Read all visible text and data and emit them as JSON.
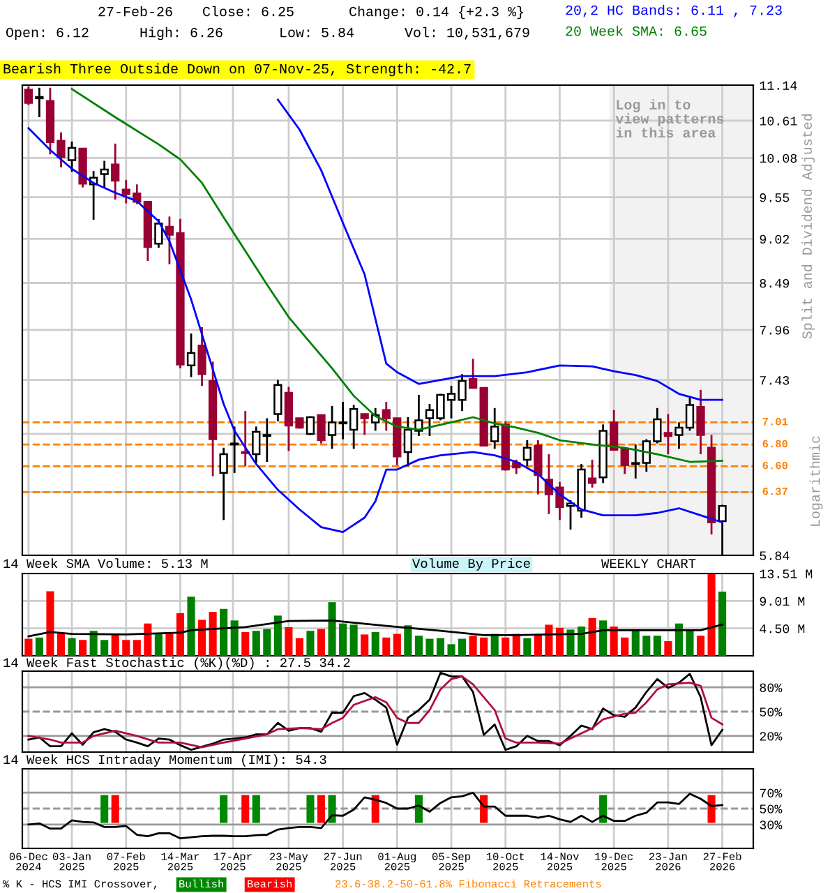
{
  "chart_data": [
    {
      "type": "candlestick",
      "title": "Bearish Three Outside Down on 07-Nov-25, Strength: -42.7",
      "annotations": [
        "27-Feb-26",
        "Close: 6.25",
        "Change: 0.14 {+2.3 %}",
        "Open: 6.12",
        "High: 6.26",
        "Low: 5.84",
        "Vol: 10,531,679",
        "Logarithmic"
      ],
      "ylabel": "Split and Dividend Adjusted",
      "x": [
        "2024-12-06",
        "2024-12-13",
        "2024-12-20",
        "2024-12-27",
        "2025-01-03",
        "2025-01-10",
        "2025-01-17",
        "2025-01-24",
        "2025-01-31",
        "2025-02-07",
        "2025-02-14",
        "2025-02-21",
        "2025-02-28",
        "2025-03-07",
        "2025-03-14",
        "2025-03-21",
        "2025-03-28",
        "2025-04-04",
        "2025-04-11",
        "2025-04-18",
        "2025-04-25",
        "2025-05-02",
        "2025-05-09",
        "2025-05-16",
        "2025-05-23",
        "2025-05-30",
        "2025-06-06",
        "2025-06-13",
        "2025-06-20",
        "2025-06-27",
        "2025-07-04",
        "2025-07-11",
        "2025-07-18",
        "2025-07-25",
        "2025-08-01",
        "2025-08-08",
        "2025-08-15",
        "2025-08-22",
        "2025-08-29",
        "2025-09-05",
        "2025-09-12",
        "2025-09-19",
        "2025-09-26",
        "2025-10-03",
        "2025-10-10",
        "2025-10-17",
        "2025-10-24",
        "2025-10-31",
        "2025-11-07",
        "2025-11-14",
        "2025-11-21",
        "2025-11-28",
        "2025-12-05",
        "2025-12-12",
        "2025-12-19",
        "2025-12-26",
        "2026-01-02",
        "2026-01-09",
        "2026-01-16",
        "2026-01-23",
        "2026-01-30",
        "2026-02-06",
        "2026-02-13",
        "2026-02-20",
        "2026-02-27"
      ],
      "series": [
        {
          "ohlc": [
            [
              11.07,
              11.12,
              10.84,
              10.87
            ],
            [
              10.94,
              11.1,
              10.66,
              10.96
            ],
            [
              10.9,
              11.1,
              10.13,
              10.3
            ],
            [
              10.32,
              10.44,
              9.95,
              10.09
            ],
            [
              10.05,
              10.31,
              9.89,
              10.22
            ],
            [
              10.21,
              10.21,
              9.68,
              9.73
            ],
            [
              9.72,
              9.9,
              9.26,
              9.81
            ],
            [
              9.86,
              10.04,
              9.68,
              9.92
            ],
            [
              9.99,
              10.28,
              9.52,
              9.77
            ],
            [
              9.65,
              9.78,
              9.47,
              9.59
            ],
            [
              9.6,
              9.72,
              9.46,
              9.49
            ],
            [
              9.49,
              9.49,
              8.75,
              8.92
            ],
            [
              8.96,
              9.27,
              8.91,
              9.21
            ],
            [
              9.17,
              9.3,
              8.71,
              9.07
            ],
            [
              9.09,
              9.27,
              7.55,
              7.59
            ],
            [
              7.58,
              7.92,
              7.46,
              7.71
            ],
            [
              7.79,
              7.99,
              7.37,
              7.49
            ],
            [
              7.42,
              7.62,
              6.51,
              6.85
            ],
            [
              6.54,
              6.77,
              6.13,
              6.71
            ],
            [
              6.8,
              6.97,
              6.54,
              6.81
            ],
            [
              6.73,
              7.12,
              6.6,
              6.72
            ],
            [
              6.71,
              6.97,
              6.63,
              6.92
            ],
            [
              6.88,
              7.05,
              6.64,
              6.89
            ],
            [
              7.09,
              7.43,
              7.02,
              7.38
            ],
            [
              7.3,
              7.36,
              6.74,
              6.98
            ],
            [
              7.05,
              7.05,
              6.95,
              6.96
            ],
            [
              6.9,
              7.07,
              6.89,
              7.06
            ],
            [
              7.08,
              7.08,
              6.81,
              6.84
            ],
            [
              6.89,
              7.17,
              6.76,
              7.01
            ],
            [
              7.0,
              7.21,
              6.85,
              7.01
            ],
            [
              6.94,
              7.18,
              6.76,
              7.14
            ],
            [
              7.09,
              7.09,
              6.89,
              7.05
            ],
            [
              7.01,
              7.15,
              6.93,
              7.08
            ],
            [
              7.13,
              7.21,
              6.93,
              7.05
            ],
            [
              7.05,
              7.05,
              6.61,
              6.69
            ],
            [
              6.73,
              7.06,
              6.6,
              6.94
            ],
            [
              6.93,
              7.28,
              6.88,
              7.03
            ],
            [
              7.05,
              7.19,
              6.88,
              7.13
            ],
            [
              7.05,
              7.29,
              7.03,
              7.28
            ],
            [
              7.23,
              7.37,
              7.05,
              7.29
            ],
            [
              7.23,
              7.49,
              7.12,
              7.42
            ],
            [
              7.44,
              7.65,
              7.35,
              7.35
            ],
            [
              7.35,
              7.35,
              6.79,
              6.79
            ],
            [
              6.83,
              7.15,
              6.76,
              6.97
            ],
            [
              6.99,
              7.02,
              6.56,
              6.57
            ],
            [
              6.63,
              6.66,
              6.53,
              6.59
            ],
            [
              6.66,
              6.84,
              6.6,
              6.77
            ],
            [
              6.79,
              6.84,
              6.35,
              6.52
            ],
            [
              6.48,
              6.71,
              6.18,
              6.35
            ],
            [
              6.41,
              6.46,
              6.13,
              6.24
            ],
            [
              6.25,
              6.3,
              6.05,
              6.27
            ],
            [
              6.21,
              6.62,
              6.15,
              6.57
            ],
            [
              6.49,
              6.66,
              6.41,
              6.45
            ],
            [
              6.5,
              6.99,
              6.45,
              6.93
            ],
            [
              7.01,
              7.13,
              6.75,
              6.75
            ],
            [
              6.76,
              6.76,
              6.53,
              6.61
            ],
            [
              6.62,
              6.8,
              6.49,
              6.63
            ],
            [
              6.63,
              6.85,
              6.55,
              6.83
            ],
            [
              6.83,
              7.15,
              6.81,
              7.04
            ],
            [
              6.91,
              7.09,
              6.71,
              6.88
            ],
            [
              6.89,
              7.01,
              6.76,
              6.96
            ],
            [
              6.96,
              7.25,
              6.93,
              7.18
            ],
            [
              7.16,
              7.33,
              6.71,
              6.89
            ],
            [
              6.77,
              6.89,
              6.01,
              6.11
            ],
            [
              6.12,
              6.26,
              5.84,
              6.25
            ]
          ],
          "colors": [
            "#990033",
            "#ffffff",
            "#990033",
            "#990033",
            "#ffffff",
            "#990033",
            "#ffffff",
            "#ffffff",
            "#990033",
            "#990033",
            "#990033",
            "#990033",
            "#ffffff",
            "#990033",
            "#990033",
            "#ffffff",
            "#990033",
            "#990033",
            "#ffffff",
            "#ffffff",
            "#990033",
            "#ffffff",
            "#ffffff",
            "#ffffff",
            "#990033",
            "#990033",
            "#ffffff",
            "#990033",
            "#ffffff",
            "#ffffff",
            "#ffffff",
            "#990033",
            "#ffffff",
            "#990033",
            "#990033",
            "#ffffff",
            "#ffffff",
            "#ffffff",
            "#ffffff",
            "#ffffff",
            "#ffffff",
            "#990033",
            "#990033",
            "#ffffff",
            "#990033",
            "#990033",
            "#ffffff",
            "#990033",
            "#990033",
            "#990033",
            "#ffffff",
            "#ffffff",
            "#990033",
            "#ffffff",
            "#990033",
            "#990033",
            "#ffffff",
            "#ffffff",
            "#ffffff",
            "#990033",
            "#ffffff",
            "#ffffff",
            "#990033",
            "#990033",
            "#ffffff"
          ]
        },
        {
          "type": "line",
          "name": "20,2 HC Bands: 6.11 , 7.23",
          "color": "#0000ff",
          "x": [
            "2025-05-16",
            "2025-05-30",
            "2025-06-13",
            "2025-06-27",
            "2025-07-11",
            "2025-07-25",
            "2025-08-01",
            "2025-08-15",
            "2025-08-29",
            "2025-09-12",
            "2025-10-03",
            "2025-10-24",
            "2025-11-14",
            "2025-12-05",
            "2025-12-19",
            "2026-01-02",
            "2026-01-16",
            "2026-01-30",
            "2026-02-13",
            "2026-02-27"
          ],
          "values": [
            10.92,
            10.48,
            9.91,
            9.22,
            8.59,
            7.6,
            7.51,
            7.39,
            7.43,
            7.47,
            7.47,
            7.51,
            7.58,
            7.57,
            7.52,
            7.48,
            7.42,
            7.29,
            7.23,
            7.23
          ]
        },
        {
          "type": "line",
          "color": "#0000ff",
          "x": [
            "2024-12-06",
            "2024-12-20",
            "2025-01-03",
            "2025-01-17",
            "2025-01-31",
            "2025-02-14",
            "2025-02-28",
            "2025-03-07",
            "2025-03-21",
            "2025-04-04",
            "2025-04-11",
            "2025-04-18",
            "2025-05-02",
            "2025-05-16",
            "2025-05-30",
            "2025-06-13",
            "2025-06-27",
            "2025-07-11",
            "2025-07-18",
            "2025-07-25",
            "2025-08-01",
            "2025-08-15",
            "2025-08-29",
            "2025-09-19",
            "2025-10-03",
            "2025-10-17",
            "2025-10-31",
            "2025-11-14",
            "2025-11-28",
            "2025-12-12",
            "2026-01-02",
            "2026-01-16",
            "2026-01-30",
            "2026-02-13",
            "2026-02-27"
          ],
          "values": [
            10.5,
            10.19,
            9.93,
            9.74,
            9.61,
            9.5,
            9.24,
            8.99,
            8.3,
            7.54,
            7.19,
            6.93,
            6.62,
            6.39,
            6.22,
            6.07,
            6.03,
            6.15,
            6.29,
            6.57,
            6.57,
            6.66,
            6.7,
            6.73,
            6.7,
            6.64,
            6.53,
            6.35,
            6.22,
            6.17,
            6.17,
            6.19,
            6.23,
            6.17,
            6.11
          ]
        },
        {
          "type": "line",
          "name": "20 Week SMA: 6.65",
          "color": "#008000",
          "x": [
            "2025-01-03",
            "2025-01-31",
            "2025-02-28",
            "2025-03-14",
            "2025-03-28",
            "2025-04-11",
            "2025-04-25",
            "2025-05-09",
            "2025-05-23",
            "2025-06-06",
            "2025-06-20",
            "2025-07-04",
            "2025-07-18",
            "2025-08-01",
            "2025-08-15",
            "2025-09-05",
            "2025-09-19",
            "2025-10-03",
            "2025-10-17",
            "2025-10-31",
            "2025-11-14",
            "2025-12-05",
            "2025-12-26",
            "2026-01-16",
            "2026-02-06",
            "2026-02-27"
          ],
          "values": [
            11.08,
            10.66,
            10.27,
            10.06,
            9.74,
            9.29,
            8.87,
            8.47,
            8.1,
            7.82,
            7.55,
            7.27,
            7.07,
            6.97,
            6.94,
            7.01,
            7.06,
            7.0,
            6.96,
            6.91,
            6.84,
            6.8,
            6.77,
            6.71,
            6.64,
            6.65
          ]
        }
      ],
      "log": true,
      "ylim": [
        5.84,
        11.14
      ],
      "yticks": [
        5.84,
        {
          "value": 6.37,
          "label": null
        },
        {
          "value": 6.9,
          "label": null
        },
        7.43,
        7.96,
        8.49,
        9.02,
        9.55,
        10.08,
        10.61,
        11.14
      ],
      "xlim": [
        "2024-12-02",
        "2026-03-19"
      ],
      "xticks": [
        {
          "value": "2024-12-06",
          "label": null
        },
        {
          "value": "2025-01-03",
          "label": null
        },
        {
          "value": "2025-02-07",
          "label": null
        },
        {
          "value": "2025-03-14",
          "label": null
        },
        {
          "value": "2025-04-17",
          "label": null
        },
        {
          "value": "2025-05-23",
          "label": null
        },
        {
          "value": "2025-06-27",
          "label": null
        },
        {
          "value": "2025-08-01",
          "label": null
        },
        {
          "value": "2025-09-05",
          "label": null
        },
        {
          "value": "2025-10-10",
          "label": null
        },
        {
          "value": "2025-11-14",
          "label": null
        },
        {
          "value": "2025-12-19",
          "label": null
        },
        {
          "value": "2026-01-23",
          "label": null
        },
        {
          "value": "2026-02-27",
          "label": null
        }
      ],
      "tick_labels": "y",
      "grid": true,
      "legend": "top right",
      "ref_lines": [
        {
          "axis": "y",
          "value": 7.01,
          "label": "7.01",
          "color": "#ff8000",
          "line_style": "dashed"
        },
        {
          "axis": "y",
          "value": 6.8,
          "label": "6.80",
          "color": "#ff8000",
          "line_style": "dashed"
        },
        {
          "axis": "y",
          "value": 6.6,
          "label": "6.60",
          "color": "#ff8000",
          "line_style": "dashed"
        },
        {
          "axis": "y",
          "value": 6.37,
          "label": "6.37",
          "color": "#ff8000",
          "line_style": "dashed"
        }
      ],
      "bands": [
        {
          "axis": "x",
          "from": "2025-12-16",
          "to": "2026-03-19",
          "label": "Log in to view patterns in this area",
          "color": "#f2f2f2"
        }
      ]
    },
    {
      "type": "bar",
      "title": "14 Week SMA Volume: 5.13 M",
      "annotations": [
        "Volume By Price",
        "WEEKLY CHART"
      ],
      "x": [
        "2024-12-06",
        "2024-12-13",
        "2024-12-20",
        "2024-12-27",
        "2025-01-03",
        "2025-01-10",
        "2025-01-17",
        "2025-01-24",
        "2025-01-31",
        "2025-02-07",
        "2025-02-14",
        "2025-02-21",
        "2025-02-28",
        "2025-03-07",
        "2025-03-14",
        "2025-03-21",
        "2025-03-28",
        "2025-04-04",
        "2025-04-11",
        "2025-04-18",
        "2025-04-25",
        "2025-05-02",
        "2025-05-09",
        "2025-05-16",
        "2025-05-23",
        "2025-05-30",
        "2025-06-06",
        "2025-06-13",
        "2025-06-20",
        "2025-06-27",
        "2025-07-04",
        "2025-07-11",
        "2025-07-18",
        "2025-07-25",
        "2025-08-01",
        "2025-08-08",
        "2025-08-15",
        "2025-08-22",
        "2025-08-29",
        "2025-09-05",
        "2025-09-12",
        "2025-09-19",
        "2025-09-26",
        "2025-10-03",
        "2025-10-10",
        "2025-10-17",
        "2025-10-24",
        "2025-10-31",
        "2025-11-07",
        "2025-11-14",
        "2025-11-21",
        "2025-11-28",
        "2025-12-05",
        "2025-12-12",
        "2025-12-19",
        "2025-12-26",
        "2026-01-02",
        "2026-01-09",
        "2026-01-16",
        "2026-01-23",
        "2026-01-30",
        "2026-02-06",
        "2026-02-13",
        "2026-02-20",
        "2026-02-27"
      ],
      "series": [
        {
          "values": [
            2.8,
            3.0,
            10.6,
            3.8,
            2.9,
            2.6,
            4.1,
            2.6,
            3.5,
            2.6,
            2.6,
            5.3,
            3.6,
            3.8,
            7.0,
            9.7,
            5.9,
            7.2,
            7.7,
            5.8,
            3.9,
            4.1,
            4.4,
            6.6,
            4.7,
            2.9,
            4.1,
            4.4,
            8.8,
            5.3,
            5.1,
            3.5,
            3.9,
            3.0,
            3.6,
            5.0,
            3.3,
            2.8,
            2.9,
            1.9,
            2.8,
            3.3,
            3.0,
            3.6,
            3.0,
            3.6,
            2.9,
            3.5,
            5.1,
            4.6,
            4.3,
            4.8,
            6.2,
            5.8,
            4.8,
            3.0,
            4.2,
            3.3,
            3.3,
            2.4,
            5.3,
            4.3,
            3.3,
            13.4,
            10.53
          ],
          "colors": [
            "#ff0000",
            "#008000",
            "#ff0000",
            "#ff0000",
            "#008000",
            "#ff0000",
            "#008000",
            "#008000",
            "#ff0000",
            "#ff0000",
            "#ff0000",
            "#ff0000",
            "#008000",
            "#ff0000",
            "#ff0000",
            "#008000",
            "#ff0000",
            "#ff0000",
            "#008000",
            "#008000",
            "#ff0000",
            "#008000",
            "#008000",
            "#008000",
            "#ff0000",
            "#ff0000",
            "#008000",
            "#ff0000",
            "#008000",
            "#008000",
            "#008000",
            "#ff0000",
            "#008000",
            "#ff0000",
            "#ff0000",
            "#008000",
            "#008000",
            "#008000",
            "#008000",
            "#008000",
            "#008000",
            "#ff0000",
            "#ff0000",
            "#008000",
            "#ff0000",
            "#ff0000",
            "#008000",
            "#ff0000",
            "#ff0000",
            "#ff0000",
            "#008000",
            "#008000",
            "#ff0000",
            "#008000",
            "#ff0000",
            "#ff0000",
            "#008000",
            "#008000",
            "#008000",
            "#ff0000",
            "#008000",
            "#008000",
            "#ff0000",
            "#ff0000",
            "#008000"
          ]
        },
        {
          "type": "line",
          "color": "#000000",
          "x": [
            "2024-12-06",
            "2024-12-20",
            "2025-01-03",
            "2025-02-07",
            "2025-03-14",
            "2025-03-21",
            "2025-04-25",
            "2025-05-23",
            "2025-06-20",
            "2025-07-25",
            "2025-08-29",
            "2025-09-26",
            "2025-10-17",
            "2025-11-07",
            "2025-11-28",
            "2025-12-12",
            "2026-01-09",
            "2026-02-13",
            "2026-02-27"
          ],
          "values": [
            3.2,
            3.9,
            3.6,
            3.5,
            3.8,
            4.2,
            4.7,
            5.7,
            5.8,
            4.9,
            4.1,
            3.4,
            3.4,
            3.5,
            3.6,
            4.2,
            4.2,
            4.2,
            5.13
          ]
        }
      ],
      "ylim": [
        0,
        13.51
      ],
      "yticks": [
        {
          "value": 4.5,
          "label": "4.50 M"
        },
        {
          "value": 9.01,
          "label": "9.01 M"
        },
        {
          "value": 13.51,
          "label": "13.51 M"
        }
      ],
      "xlim": [
        "2024-12-02",
        "2026-03-19"
      ],
      "xticks": [
        {
          "value": "2024-12-06",
          "label": null
        },
        {
          "value": "2025-01-03",
          "label": null
        },
        {
          "value": "2025-02-07",
          "label": null
        },
        {
          "value": "2025-03-14",
          "label": null
        },
        {
          "value": "2025-04-17",
          "label": null
        },
        {
          "value": "2025-05-23",
          "label": null
        },
        {
          "value": "2025-06-27",
          "label": null
        },
        {
          "value": "2025-08-01",
          "label": null
        },
        {
          "value": "2025-09-05",
          "label": null
        },
        {
          "value": "2025-10-10",
          "label": null
        },
        {
          "value": "2025-11-14",
          "label": null
        },
        {
          "value": "2025-12-19",
          "label": null
        },
        {
          "value": "2026-01-23",
          "label": null
        },
        {
          "value": "2026-02-27",
          "label": null
        }
      ],
      "tick_labels": "y",
      "grid": true
    },
    {
      "type": "line",
      "title": "14 Week Fast Stochastic (%K)(%D) : 27.5 34.2",
      "x": [
        "2024-12-06",
        "2024-12-13",
        "2024-12-20",
        "2024-12-27",
        "2025-01-03",
        "2025-01-10",
        "2025-01-17",
        "2025-01-24",
        "2025-01-31",
        "2025-02-07",
        "2025-02-14",
        "2025-02-21",
        "2025-02-28",
        "2025-03-07",
        "2025-03-14",
        "2025-03-21",
        "2025-03-28",
        "2025-04-04",
        "2025-04-11",
        "2025-04-18",
        "2025-04-25",
        "2025-05-02",
        "2025-05-09",
        "2025-05-16",
        "2025-05-23",
        "2025-05-30",
        "2025-06-06",
        "2025-06-13",
        "2025-06-20",
        "2025-06-27",
        "2025-07-04",
        "2025-07-11",
        "2025-07-18",
        "2025-07-25",
        "2025-08-01",
        "2025-08-08",
        "2025-08-15",
        "2025-08-22",
        "2025-08-29",
        "2025-09-05",
        "2025-09-12",
        "2025-09-19",
        "2025-09-26",
        "2025-10-03",
        "2025-10-10",
        "2025-10-17",
        "2025-10-24",
        "2025-10-31",
        "2025-11-07",
        "2025-11-14",
        "2025-11-21",
        "2025-11-28",
        "2025-12-05",
        "2025-12-12",
        "2025-12-19",
        "2025-12-26",
        "2026-01-02",
        "2026-01-09",
        "2026-01-16",
        "2026-01-23",
        "2026-01-30",
        "2026-02-06",
        "2026-02-13",
        "2026-02-20",
        "2026-02-27"
      ],
      "series": [
        {
          "color": "#000000",
          "values": [
            15.5,
            18.1,
            7.2,
            7.2,
            23.2,
            9.1,
            24.5,
            28.3,
            25.1,
            15.5,
            11.7,
            7.2,
            16.8,
            15.5,
            8.5,
            2.8,
            6.6,
            10.4,
            15.5,
            16.8,
            18.1,
            21.9,
            21.9,
            36.0,
            26.4,
            29.6,
            29.6,
            25.1,
            48.7,
            48.7,
            69.1,
            73.0,
            64.7,
            55.1,
            9.1,
            42.3,
            51.9,
            64.7,
            97.9,
            93.4,
            93.4,
            74.3,
            21.3,
            34.0,
            2.8,
            7.2,
            20.0,
            13.6,
            13.6,
            8.5,
            20.0,
            32.8,
            28.3,
            53.8,
            45.5,
            43.6,
            55.1,
            74.3,
            90.2,
            79.4,
            85.7,
            96.6,
            67.9,
            8.5,
            27.5
          ]
        },
        {
          "color": "#b0103a",
          "x": [
            "2024-12-06",
            "2024-12-20",
            "2024-12-27",
            "2025-01-10",
            "2025-01-17",
            "2025-01-31",
            "2025-02-14",
            "2025-02-28",
            "2025-03-14",
            "2025-03-28",
            "2025-04-11",
            "2025-04-25",
            "2025-05-09",
            "2025-05-16",
            "2025-05-30",
            "2025-06-13",
            "2025-06-20",
            "2025-06-27",
            "2025-07-04",
            "2025-07-18",
            "2025-07-25",
            "2025-08-01",
            "2025-08-08",
            "2025-08-15",
            "2025-08-22",
            "2025-08-29",
            "2025-09-05",
            "2025-09-12",
            "2025-09-19",
            "2025-10-03",
            "2025-10-10",
            "2025-10-17",
            "2025-10-31",
            "2025-11-14",
            "2025-11-21",
            "2025-12-05",
            "2025-12-12",
            "2025-12-26",
            "2026-01-02",
            "2026-01-09",
            "2026-01-16",
            "2026-01-23",
            "2026-02-06",
            "2026-02-13",
            "2026-02-20",
            "2026-02-27"
          ],
          "values": [
            20.0,
            15.5,
            11.7,
            11.7,
            20.0,
            26.4,
            20.0,
            11.7,
            11.7,
            6.0,
            11.7,
            16.8,
            21.9,
            28.3,
            29.6,
            28.3,
            36.0,
            42.3,
            58.3,
            67.9,
            61.5,
            42.3,
            36.0,
            36.0,
            51.9,
            77.4,
            90.2,
            93.4,
            83.8,
            51.9,
            16.8,
            11.7,
            11.7,
            10.4,
            16.8,
            29.6,
            40.4,
            47.4,
            48.7,
            61.5,
            77.4,
            83.8,
            85.7,
            81.9,
            42.3,
            34.2
          ]
        }
      ],
      "ylim": [
        0,
        100
      ],
      "yticks": [
        {
          "value": 20,
          "label": "20%"
        },
        {
          "value": 50,
          "label": "50%"
        },
        {
          "value": 80,
          "label": "80%"
        }
      ],
      "xlim": [
        "2024-12-02",
        "2026-03-19"
      ],
      "xticks": [
        {
          "value": "2024-12-06",
          "label": null
        },
        {
          "value": "2025-01-03",
          "label": null
        },
        {
          "value": "2025-02-07",
          "label": null
        },
        {
          "value": "2025-03-14",
          "label": null
        },
        {
          "value": "2025-04-17",
          "label": null
        },
        {
          "value": "2025-05-23",
          "label": null
        },
        {
          "value": "2025-06-27",
          "label": null
        },
        {
          "value": "2025-08-01",
          "label": null
        },
        {
          "value": "2025-09-05",
          "label": null
        },
        {
          "value": "2025-10-10",
          "label": null
        },
        {
          "value": "2025-11-14",
          "label": null
        },
        {
          "value": "2025-12-19",
          "label": null
        },
        {
          "value": "2026-01-23",
          "label": null
        },
        {
          "value": "2026-02-27",
          "label": null
        }
      ],
      "tick_labels": "y",
      "grid": "x",
      "ref_lines": [
        {
          "axis": "y",
          "value": 20,
          "color": "#999999",
          "line_style": "solid"
        },
        {
          "axis": "y",
          "value": 50,
          "color": "#999999",
          "line_style": "dashed"
        },
        {
          "axis": "y",
          "value": 80,
          "color": "#999999",
          "line_style": "solid"
        }
      ]
    },
    {
      "type": "line",
      "title": "14 Week HCS Intraday Momentum (IMI): 54.3",
      "annotations": [
        "23.6-38.2-50-61.8% Fibonacci Retracements"
      ],
      "legend_title": "% K - HCS IMI Crossover,",
      "legend": "bottom",
      "x": [
        "2024-12-06",
        "2024-12-13",
        "2024-12-20",
        "2024-12-27",
        "2025-01-03",
        "2025-01-10",
        "2025-01-17",
        "2025-01-24",
        "2025-01-31",
        "2025-02-07",
        "2025-02-14",
        "2025-02-21",
        "2025-02-28",
        "2025-03-07",
        "2025-03-14",
        "2025-03-21",
        "2025-03-28",
        "2025-04-04",
        "2025-04-11",
        "2025-04-18",
        "2025-04-25",
        "2025-05-02",
        "2025-05-09",
        "2025-05-16",
        "2025-05-23",
        "2025-05-30",
        "2025-06-06",
        "2025-06-13",
        "2025-06-20",
        "2025-06-27",
        "2025-07-04",
        "2025-07-11",
        "2025-07-18",
        "2025-07-25",
        "2025-08-01",
        "2025-08-08",
        "2025-08-15",
        "2025-08-22",
        "2025-08-29",
        "2025-09-05",
        "2025-09-12",
        "2025-09-19",
        "2025-09-26",
        "2025-10-03",
        "2025-10-10",
        "2025-10-17",
        "2025-10-24",
        "2025-10-31",
        "2025-11-07",
        "2025-11-14",
        "2025-11-21",
        "2025-11-28",
        "2025-12-05",
        "2025-12-12",
        "2025-12-19",
        "2025-12-26",
        "2026-01-02",
        "2026-01-09",
        "2026-01-16",
        "2026-01-23",
        "2026-01-30",
        "2026-02-06",
        "2026-02-13",
        "2026-02-20",
        "2026-02-27"
      ],
      "series": [
        {
          "type": "bar",
          "name": "Bullish",
          "color": "#008800",
          "x": [
            "2025-01-24",
            "2025-04-11",
            "2025-05-02",
            "2025-06-06",
            "2025-06-20",
            "2025-08-15",
            "2025-12-12"
          ],
          "values": [
            35,
            35,
            35,
            35,
            35,
            35,
            35
          ],
          "base": [
            32,
            32,
            32,
            32,
            32,
            32,
            32
          ]
        },
        {
          "type": "bar",
          "name": "Bearish",
          "color": "#ff0000",
          "x": [
            "2025-01-31",
            "2025-04-25",
            "2025-06-13",
            "2025-07-18",
            "2025-09-26",
            "2026-02-20"
          ],
          "values": [
            35,
            35,
            35,
            35,
            35,
            35
          ],
          "base": [
            32,
            32,
            32,
            32,
            32,
            32
          ]
        },
        {
          "color": "#000000",
          "values": [
            30.0,
            31.3,
            24.8,
            24.8,
            35.2,
            33.2,
            32.6,
            26.8,
            26.8,
            28.1,
            17.1,
            15.2,
            19.0,
            19.0,
            12.6,
            13.9,
            15.2,
            15.8,
            15.8,
            15.2,
            15.2,
            16.5,
            17.1,
            23.6,
            25.5,
            26.8,
            26.8,
            25.5,
            41.6,
            41.0,
            48.7,
            64.2,
            61.0,
            57.1,
            50.0,
            50.0,
            53.9,
            46.1,
            57.1,
            64.2,
            65.5,
            70.0,
            52.6,
            52.6,
            41.0,
            41.0,
            41.0,
            38.4,
            41.0,
            36.5,
            33.2,
            41.0,
            33.2,
            41.0,
            34.5,
            34.5,
            41.0,
            44.8,
            57.7,
            57.7,
            55.8,
            68.7,
            62.3,
            53.2,
            54.3
          ]
        }
      ],
      "ylim": [
        0,
        100
      ],
      "yticks": [
        {
          "value": 30,
          "label": "30%"
        },
        {
          "value": 50,
          "label": "50%"
        },
        {
          "value": 70,
          "label": "70%"
        }
      ],
      "xlim": [
        "2024-12-02",
        "2026-03-19"
      ],
      "xticks": [
        {
          "value": "2024-12-06",
          "label": "06-Dec\n2024"
        },
        {
          "value": "2025-01-03",
          "label": "03-Jan\n2025"
        },
        {
          "value": "2025-02-07",
          "label": "07-Feb\n2025"
        },
        {
          "value": "2025-03-14",
          "label": "14-Mar\n2025"
        },
        {
          "value": "2025-04-17",
          "label": "17-Apr\n2025"
        },
        {
          "value": "2025-05-23",
          "label": "23-May\n2025"
        },
        {
          "value": "2025-06-27",
          "label": "27-Jun\n2025"
        },
        {
          "value": "2025-08-01",
          "label": "01-Aug\n2025"
        },
        {
          "value": "2025-09-05",
          "label": "05-Sep\n2025"
        },
        {
          "value": "2025-10-10",
          "label": "10-Oct\n2025"
        },
        {
          "value": "2025-11-14",
          "label": "14-Nov\n2025"
        },
        {
          "value": "2025-12-19",
          "label": "19-Dec\n2025"
        },
        {
          "value": "2026-01-23",
          "label": "23-Jan\n2026"
        },
        {
          "value": "2026-02-27",
          "label": "27-Feb\n2026"
        }
      ],
      "grid": "x",
      "ref_lines": [
        {
          "axis": "y",
          "value": 30,
          "color": "#999999",
          "line_style": "solid"
        },
        {
          "axis": "y",
          "value": 50,
          "color": "#999999",
          "line_style": "dashed"
        },
        {
          "axis": "y",
          "value": 70,
          "color": "#999999",
          "line_style": "solid"
        }
      ]
    }
  ]
}
